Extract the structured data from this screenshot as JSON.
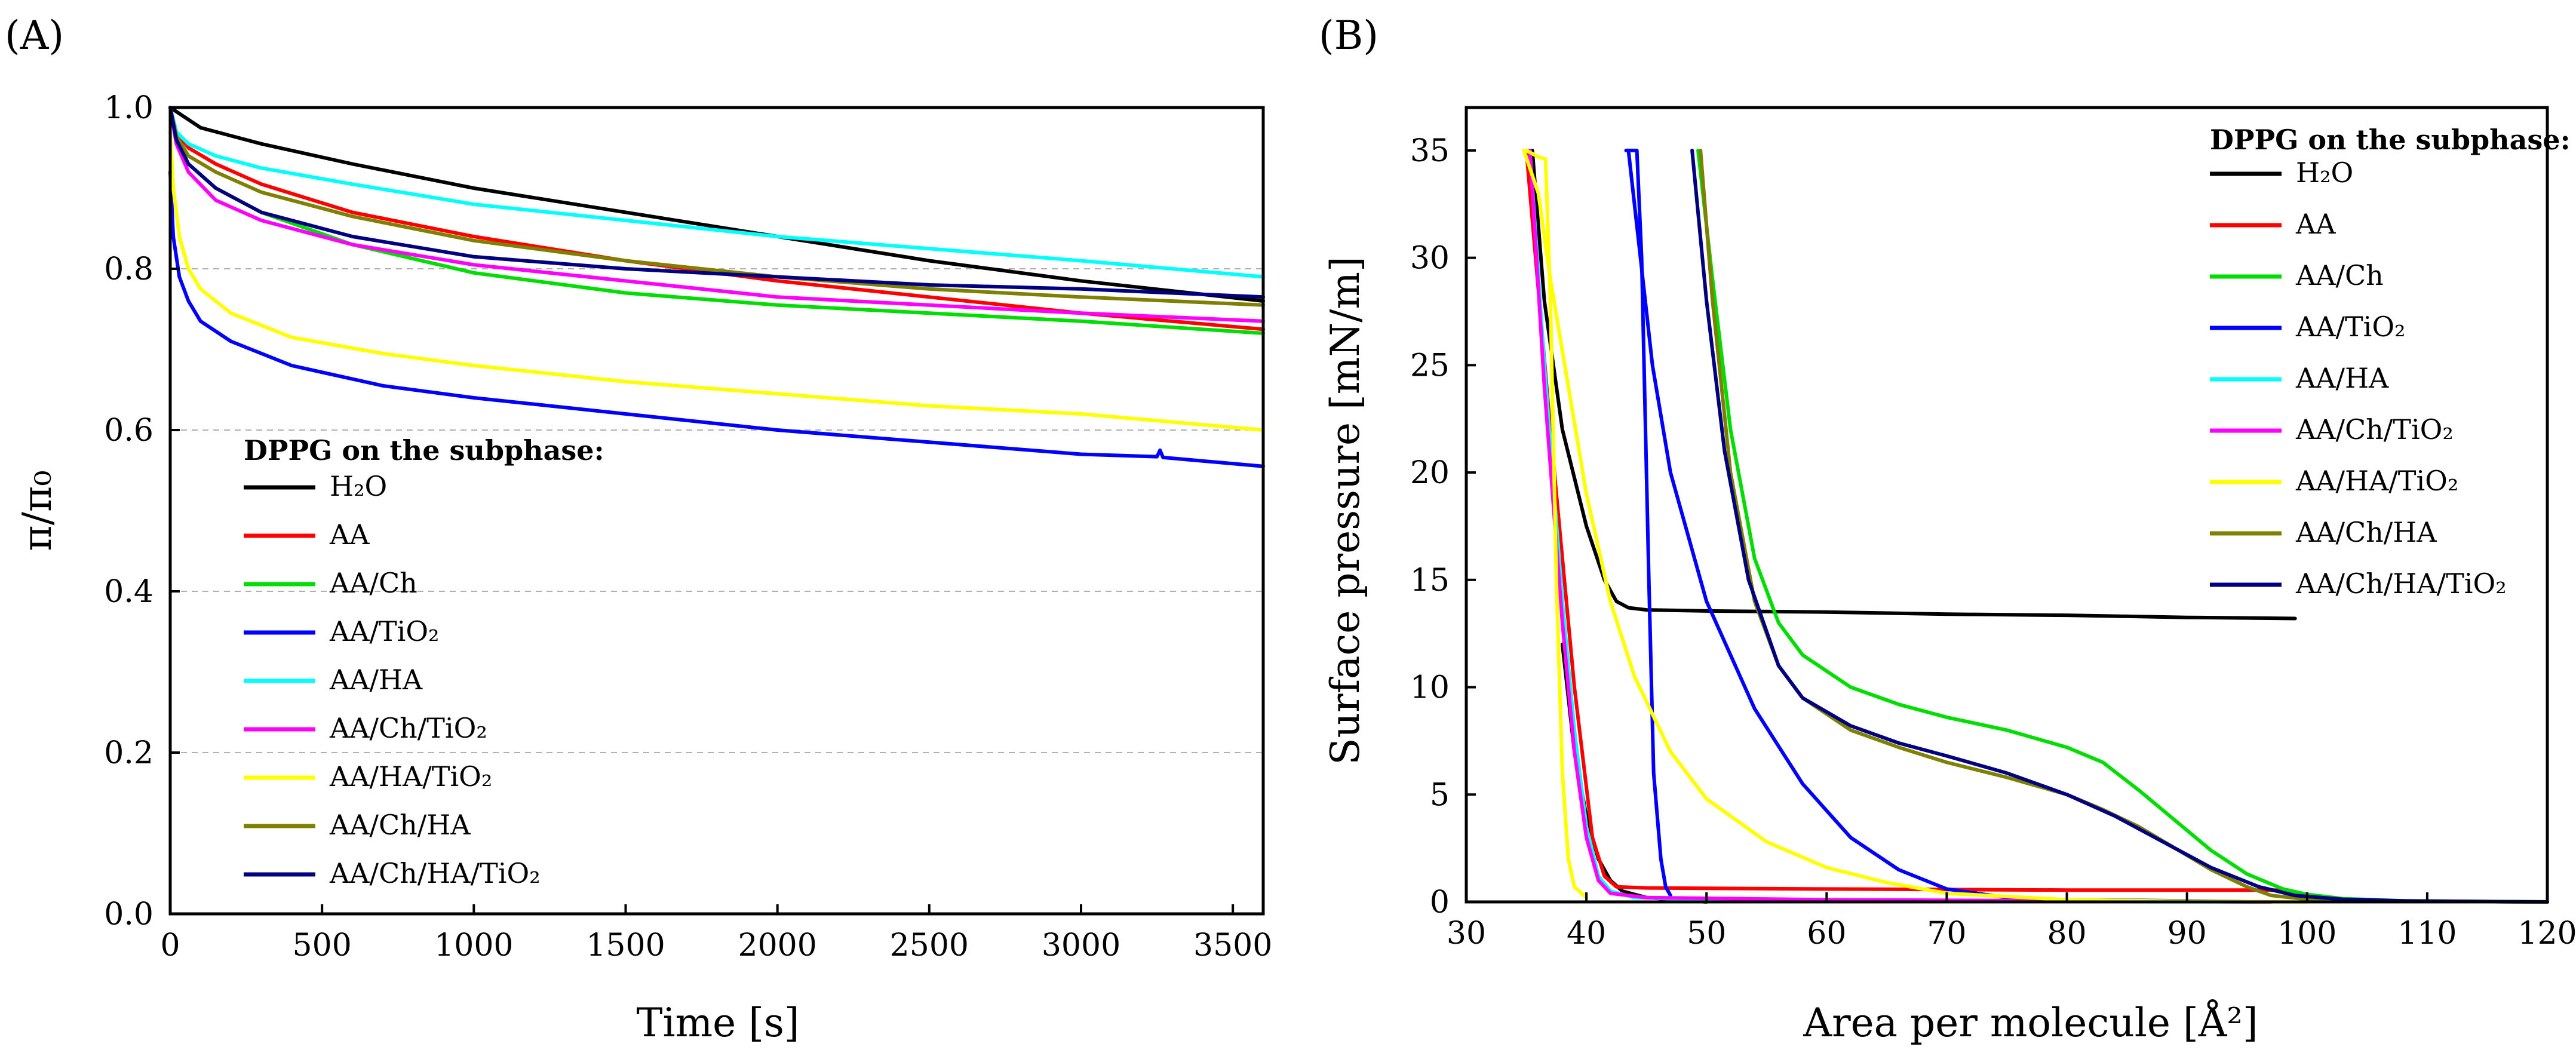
{
  "panels": [
    {
      "label": "(A)",
      "xlabel": "Time [s]",
      "ylabel": "π/π₀",
      "legend_title": "DPPG on the subphase:"
    },
    {
      "label": "(B)",
      "xlabel": "Area per molecule [Å²]",
      "ylabel": "Surface pressure [mN/m]",
      "legend_title": "DPPG on the subphase:"
    }
  ],
  "chart_data": [
    {
      "type": "line",
      "panel": "A",
      "xlabel": "Time [s]",
      "ylabel": "π/π₀",
      "xlim": [
        0,
        3600
      ],
      "ylim": [
        0.0,
        1.0
      ],
      "xticks": [
        0,
        500,
        1000,
        1500,
        2000,
        2500,
        3000,
        3500
      ],
      "yticks": [
        0.0,
        0.2,
        0.4,
        0.6,
        0.8,
        1.0
      ],
      "ytick_labels": [
        "0.0",
        "0.2",
        "0.4",
        "0.6",
        "0.8",
        "1.0"
      ],
      "grid": "horizontal dashed",
      "legend_position": "lower-left",
      "legend_title": "DPPG on the subphase:",
      "series": [
        {
          "name": "H2O",
          "label": "H₂O",
          "color": "#000000",
          "x": [
            0,
            100,
            300,
            600,
            1000,
            1500,
            2000,
            2500,
            3000,
            3600
          ],
          "y": [
            1.0,
            0.975,
            0.955,
            0.93,
            0.9,
            0.87,
            0.84,
            0.81,
            0.785,
            0.76
          ]
        },
        {
          "name": "AA",
          "label": "AA",
          "color": "#ff0000",
          "x": [
            0,
            20,
            60,
            150,
            300,
            600,
            1000,
            1500,
            2000,
            2500,
            3000,
            3600
          ],
          "y": [
            1.0,
            0.97,
            0.95,
            0.93,
            0.905,
            0.87,
            0.84,
            0.81,
            0.785,
            0.765,
            0.745,
            0.725
          ]
        },
        {
          "name": "AA/Ch",
          "label": "AA/Ch",
          "color": "#00dd00",
          "x": [
            0,
            20,
            60,
            150,
            300,
            600,
            1000,
            1500,
            2000,
            2500,
            3000,
            3600
          ],
          "y": [
            1.0,
            0.96,
            0.93,
            0.9,
            0.87,
            0.83,
            0.795,
            0.77,
            0.755,
            0.745,
            0.735,
            0.72
          ]
        },
        {
          "name": "AA/TiO2",
          "label": "AA/TiO₂",
          "color": "#0000ff",
          "x": [
            0,
            10,
            30,
            60,
            100,
            200,
            400,
            700,
            1000,
            1500,
            2000,
            2500,
            3000,
            3250,
            3260,
            3270,
            3600
          ],
          "y": [
            0.92,
            0.84,
            0.79,
            0.76,
            0.735,
            0.71,
            0.68,
            0.655,
            0.64,
            0.62,
            0.6,
            0.585,
            0.57,
            0.567,
            0.575,
            0.566,
            0.555
          ]
        },
        {
          "name": "AA/HA",
          "label": "AA/HA",
          "color": "#00ffff",
          "x": [
            0,
            20,
            60,
            150,
            300,
            600,
            1000,
            1500,
            2000,
            2500,
            3000,
            3600
          ],
          "y": [
            1.0,
            0.97,
            0.955,
            0.94,
            0.925,
            0.905,
            0.88,
            0.86,
            0.84,
            0.825,
            0.81,
            0.79
          ]
        },
        {
          "name": "AA/Ch/TiO2",
          "label": "AA/Ch/TiO₂",
          "color": "#ff00ff",
          "x": [
            0,
            20,
            60,
            150,
            300,
            600,
            1000,
            1500,
            2000,
            2500,
            3000,
            3600
          ],
          "y": [
            1.0,
            0.955,
            0.92,
            0.885,
            0.86,
            0.83,
            0.805,
            0.785,
            0.765,
            0.755,
            0.745,
            0.735
          ]
        },
        {
          "name": "AA/HA/TiO2",
          "label": "AA/HA/TiO₂",
          "color": "#ffff00",
          "x": [
            0,
            10,
            30,
            60,
            100,
            200,
            400,
            700,
            1000,
            1500,
            2000,
            2500,
            3000,
            3600
          ],
          "y": [
            0.97,
            0.9,
            0.84,
            0.8,
            0.775,
            0.745,
            0.715,
            0.695,
            0.68,
            0.66,
            0.645,
            0.63,
            0.62,
            0.6
          ]
        },
        {
          "name": "AA/Ch/HA",
          "label": "AA/Ch/HA",
          "color": "#808000",
          "x": [
            0,
            20,
            60,
            150,
            300,
            600,
            1000,
            1500,
            2000,
            2500,
            3000,
            3600
          ],
          "y": [
            1.0,
            0.965,
            0.94,
            0.92,
            0.895,
            0.865,
            0.835,
            0.81,
            0.79,
            0.775,
            0.765,
            0.755
          ]
        },
        {
          "name": "AA/Ch/HA/TiO2",
          "label": "AA/Ch/HA/TiO₂",
          "color": "#000080",
          "x": [
            0,
            20,
            60,
            150,
            300,
            600,
            1000,
            1500,
            2000,
            2500,
            3000,
            3600
          ],
          "y": [
            1.0,
            0.96,
            0.93,
            0.9,
            0.87,
            0.84,
            0.815,
            0.8,
            0.79,
            0.78,
            0.775,
            0.765
          ]
        }
      ]
    },
    {
      "type": "line",
      "panel": "B",
      "xlabel": "Area per molecule [Å²]",
      "ylabel": "Surface pressure [mN/m]",
      "xlim": [
        30,
        120
      ],
      "ylim": [
        0,
        37
      ],
      "xticks": [
        30,
        40,
        50,
        60,
        70,
        80,
        90,
        100,
        110,
        120
      ],
      "yticks": [
        0,
        5,
        10,
        15,
        20,
        25,
        30,
        35
      ],
      "grid": "none",
      "legend_position": "top-right",
      "legend_title": "DPPG on the subphase:",
      "series": [
        {
          "name": "H2O",
          "label": "H₂O",
          "color": "#000000",
          "x": [
            35.5,
            36.5,
            38,
            40,
            41.5,
            42.5,
            43.5,
            45,
            50,
            60,
            70,
            80,
            90,
            99
          ],
          "y": [
            35,
            28,
            22,
            17.5,
            15,
            14,
            13.7,
            13.6,
            13.55,
            13.5,
            13.4,
            13.35,
            13.25,
            13.2
          ]
        },
        {
          "name": "H2O-compression-tail",
          "label": "",
          "color": "#000000",
          "x": [
            38,
            39,
            40,
            41,
            42,
            43,
            45,
            50
          ],
          "y": [
            12,
            7,
            4,
            2,
            1,
            0.5,
            0.2,
            0
          ]
        },
        {
          "name": "AA",
          "label": "AA",
          "color": "#ff0000",
          "x": [
            35,
            37,
            39,
            40.5,
            41.5,
            42.5,
            45,
            60,
            80,
            98
          ],
          "y": [
            35,
            22,
            10,
            3,
            1.2,
            0.7,
            0.65,
            0.6,
            0.55,
            0.55
          ]
        },
        {
          "name": "AA/Ch",
          "label": "AA/Ch",
          "color": "#00dd00",
          "x": [
            49.3,
            50.5,
            52,
            54,
            56,
            58,
            62,
            66,
            70,
            75,
            80,
            83,
            86,
            89,
            92,
            95,
            98,
            100,
            103,
            108,
            114,
            120
          ],
          "y": [
            35,
            29,
            22,
            16,
            13,
            11.5,
            10,
            9.2,
            8.6,
            8,
            7.2,
            6.5,
            5.2,
            3.8,
            2.4,
            1.3,
            0.6,
            0.35,
            0.15,
            0.05,
            0.02,
            0
          ]
        },
        {
          "name": "AA/TiO2",
          "label": "AA/TiO₂",
          "color": "#0000ff",
          "x": [
            43.5,
            44.5,
            45.5,
            47,
            50,
            54,
            58,
            62,
            66,
            70,
            75,
            80,
            90,
            97
          ],
          "y": [
            35,
            30,
            25,
            20,
            14,
            9,
            5.5,
            3,
            1.5,
            0.6,
            0.2,
            0.1,
            0.05,
            0
          ]
        },
        {
          "name": "AA/TiO2-steep",
          "label": "",
          "color": "#0000ff",
          "x": [
            43.3,
            44.2,
            44.6,
            45.2,
            45.6,
            46.2,
            46.6,
            47
          ],
          "y": [
            35,
            35,
            30,
            15,
            6,
            2,
            0.7,
            0.3
          ]
        },
        {
          "name": "AA/HA",
          "label": "AA/HA",
          "color": "#00ffff",
          "x": [
            35.3,
            36.5,
            38,
            39,
            40,
            41,
            42,
            44,
            50,
            60,
            80,
            97
          ],
          "y": [
            35,
            25,
            14,
            8,
            3.5,
            1.2,
            0.5,
            0.2,
            0.1,
            0.05,
            0.02,
            0
          ]
        },
        {
          "name": "AA/Ch/TiO2",
          "label": "AA/Ch/TiO₂",
          "color": "#ff00ff",
          "x": [
            35.3,
            36.5,
            38,
            39,
            40,
            41,
            42,
            45,
            60,
            80,
            97
          ],
          "y": [
            35,
            24,
            13,
            7,
            3,
            1,
            0.4,
            0.2,
            0.1,
            0.05,
            0
          ]
        },
        {
          "name": "AA/HA/TiO2",
          "label": "AA/HA/TiO₂",
          "color": "#ffff00",
          "x": [
            34.8,
            36,
            37,
            38.5,
            40,
            42,
            44,
            47,
            50,
            55,
            60,
            65,
            70,
            80,
            90,
            100
          ],
          "y": [
            35,
            33,
            29,
            24,
            19,
            14,
            10.5,
            7,
            4.8,
            2.8,
            1.6,
            0.9,
            0.4,
            0.1,
            0.03,
            0
          ]
        },
        {
          "name": "AA/HA/TiO2-steep",
          "label": "",
          "color": "#ffff00",
          "x": [
            35,
            36,
            36.6,
            37,
            37.5,
            38,
            38.5,
            39,
            40
          ],
          "y": [
            35,
            34.7,
            34.6,
            28,
            15,
            6,
            2,
            0.7,
            0.2
          ]
        },
        {
          "name": "AA/Ch/HA",
          "label": "AA/Ch/HA",
          "color": "#808000",
          "x": [
            49.5,
            50.5,
            52,
            54,
            56,
            58,
            62,
            66,
            70,
            75,
            80,
            83,
            86,
            89,
            92,
            95,
            97,
            100,
            105,
            112,
            120
          ],
          "y": [
            35,
            28,
            20,
            14,
            11,
            9.5,
            8,
            7.2,
            6.5,
            5.8,
            5,
            4.3,
            3.5,
            2.5,
            1.5,
            0.7,
            0.3,
            0.12,
            0.05,
            0.02,
            0
          ]
        },
        {
          "name": "AA/Ch/HA/TiO2",
          "label": "AA/Ch/HA/TiO₂",
          "color": "#000080",
          "x": [
            48.8,
            50,
            51.5,
            53.5,
            56,
            58,
            62,
            66,
            70,
            75,
            80,
            84,
            88,
            92,
            96,
            99,
            103,
            108,
            114,
            120
          ],
          "y": [
            35,
            28,
            21,
            15,
            11,
            9.5,
            8.2,
            7.4,
            6.8,
            6,
            5,
            4,
            2.8,
            1.6,
            0.7,
            0.3,
            0.12,
            0.05,
            0.02,
            0
          ]
        }
      ]
    }
  ]
}
